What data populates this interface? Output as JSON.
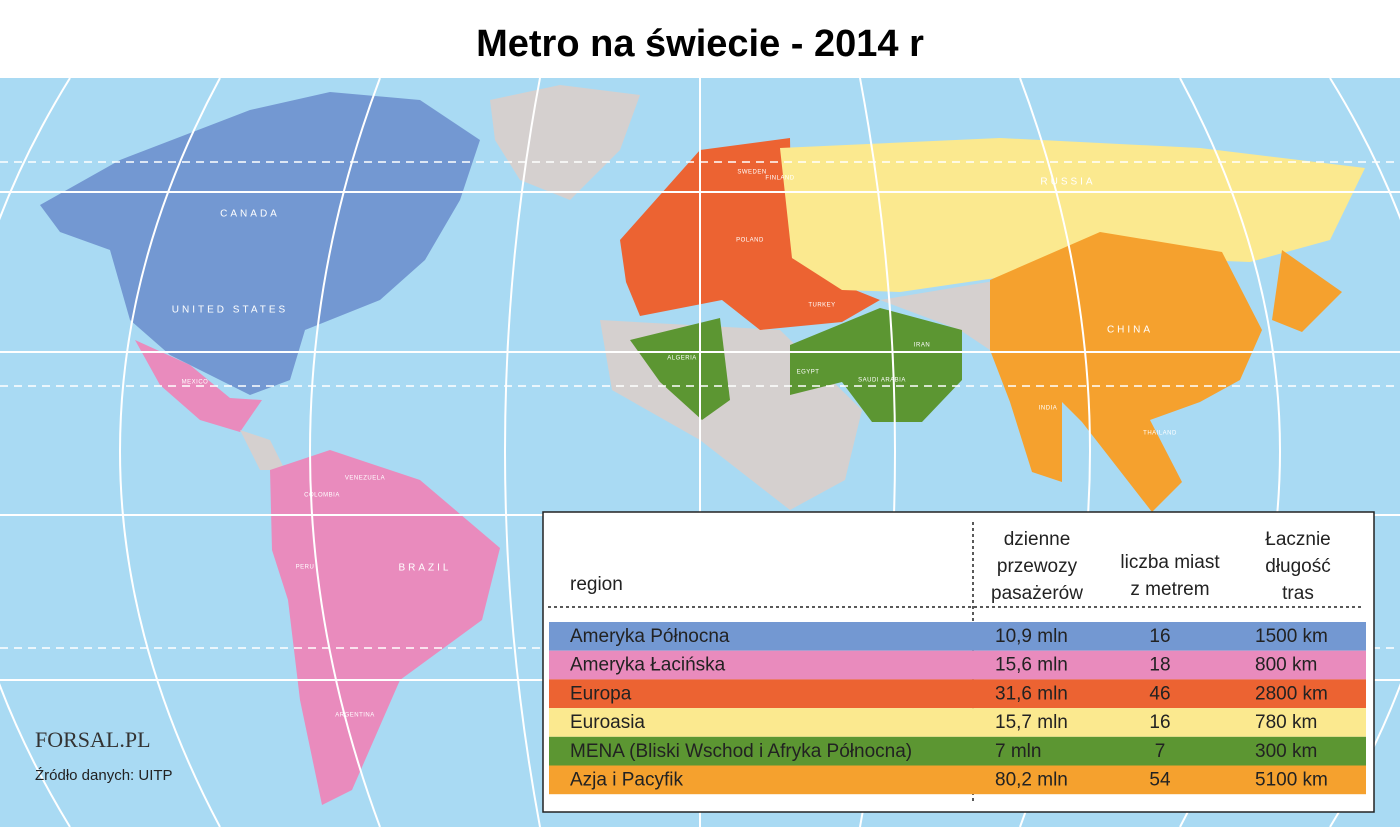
{
  "header": {
    "title": "Metro na świecie - 2014 r"
  },
  "map_labels": [
    "CANADA",
    "UNITED STATES",
    "MEXICO",
    "COLOMBIA",
    "VENEZUELA",
    "PERU",
    "BRAZIL",
    "ARGENTINA",
    "RUSSIA",
    "CHINA",
    "INDIA",
    "IRAN",
    "ALGERIA",
    "EGYPT",
    "SAUDI ARABIA",
    "TURKEY",
    "SWEDEN",
    "FINLAND",
    "POLAND",
    "THAILAND"
  ],
  "table": {
    "columns": [
      [
        "region"
      ],
      [
        "dzienne",
        "przewozy",
        "pasażerów"
      ],
      [
        "liczba miast",
        "z metrem"
      ],
      [
        "Łacznie",
        "długość",
        "tras"
      ]
    ],
    "rows": [
      {
        "color": "#7398d2",
        "cells": [
          "Ameryka Północna",
          "10,9 mln",
          16,
          "1500 km"
        ]
      },
      {
        "color": "#e98bbd",
        "cells": [
          "Ameryka Łacińska",
          "15,6 mln",
          18,
          "800 km"
        ]
      },
      {
        "color": "#ec6332",
        "cells": [
          "Europa",
          "31,6 mln",
          46,
          "2800 km"
        ]
      },
      {
        "color": "#fbe98f",
        "cells": [
          "Euroasia",
          "15,7 mln",
          16,
          "780 km"
        ]
      },
      {
        "color": "#5c9632",
        "cells": [
          "MENA (Bliski Wschod i Afryka Północna)",
          "7 mln",
          7,
          "300 km"
        ]
      },
      {
        "color": "#f5a12e",
        "cells": [
          "Azja i Pacyfik",
          "80,2 mln",
          54,
          "5100 km"
        ]
      }
    ]
  },
  "logo": "FORSAL.PL",
  "source": "Źródło danych: UITP"
}
